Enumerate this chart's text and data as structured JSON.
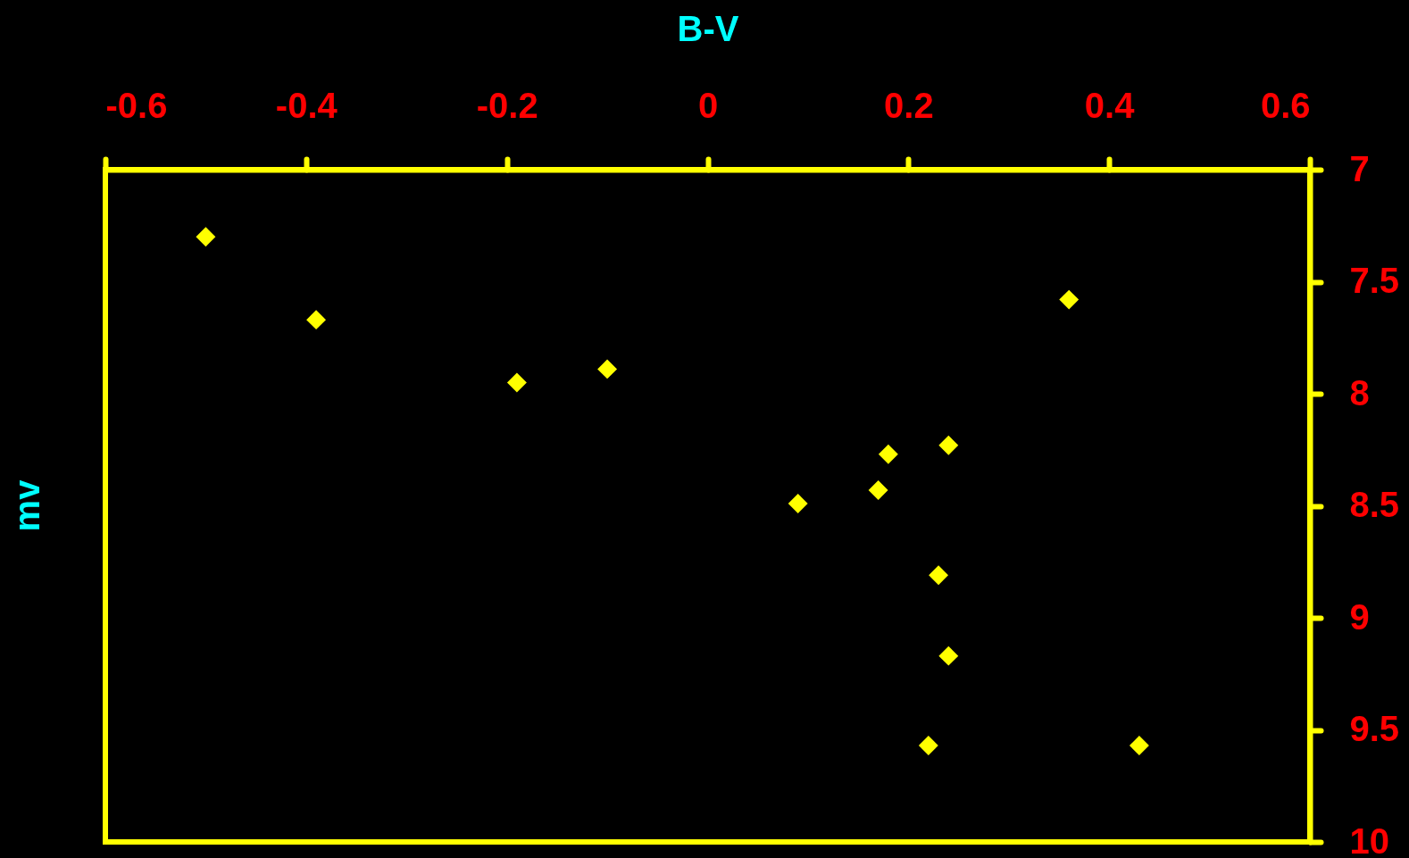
{
  "chart_data": {
    "type": "scatter",
    "xlabel": "B-V",
    "ylabel": "mv",
    "x": [
      -0.5,
      -0.39,
      -0.19,
      -0.1,
      0.36,
      0.24,
      0.18,
      0.17,
      0.09,
      0.23,
      0.24,
      0.22,
      0.43
    ],
    "values": [
      7.3,
      7.67,
      7.95,
      7.89,
      7.58,
      8.23,
      8.27,
      8.43,
      8.49,
      8.81,
      9.17,
      9.57,
      9.57
    ],
    "color": "#ffff00",
    "marker": "diamond",
    "xlim": [
      -0.6,
      0.6
    ],
    "ylim": [
      10,
      7
    ],
    "xticks": [
      -0.6,
      -0.4,
      -0.2,
      0,
      0.2,
      0.4,
      0.6
    ],
    "yticks": [
      7,
      7.5,
      8,
      8.5,
      9,
      9.5,
      10
    ]
  }
}
